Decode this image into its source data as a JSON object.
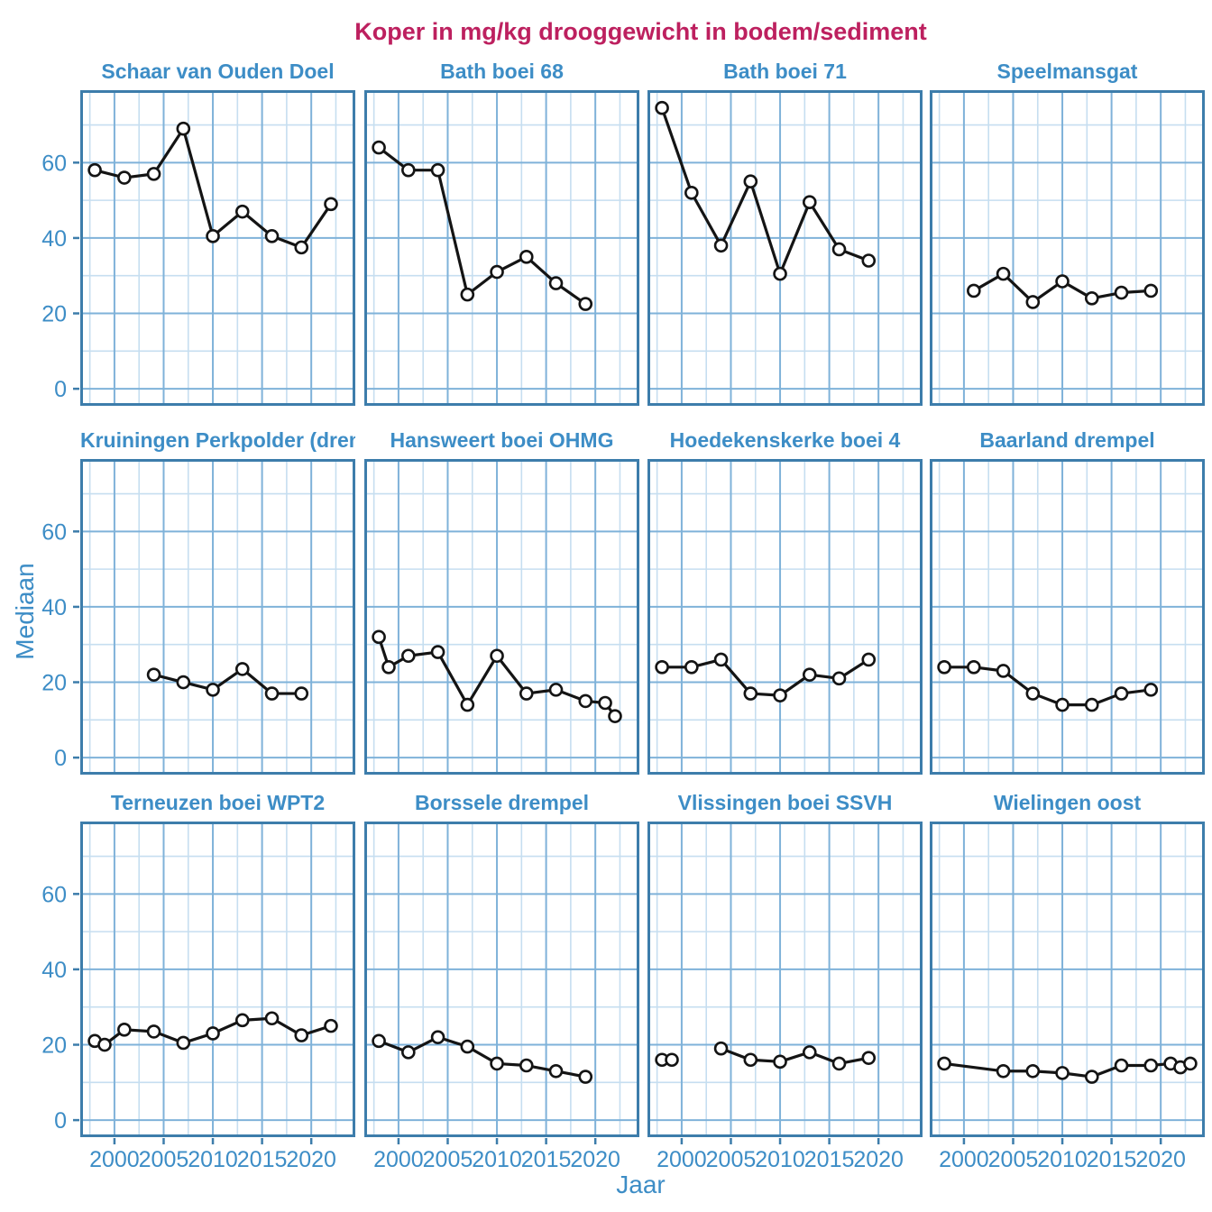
{
  "title": "Koper in mg/kg drooggewicht in bodem/sediment",
  "xlabel": "Jaar",
  "ylabel": "Mediaan",
  "colors": {
    "main_title": "#bd205f",
    "axis_text_blue": "#3d8dc6",
    "panel_border": "#3d7dab",
    "grid_major": "#7fb2d9",
    "grid_minor": "#c6def0",
    "data_line": "#141414",
    "marker_fill": "#ffffff"
  },
  "chart_data": {
    "type": "line",
    "title": "Koper in mg/kg drooggewicht in bodem/sediment",
    "xlabel": "Jaar",
    "ylabel": "Mediaan",
    "legend": "none",
    "grid": "major+minor",
    "x_ticks": [
      2000,
      2005,
      2010,
      2015,
      2020
    ],
    "x_minor_ticks": [
      1997.5,
      2002.5,
      2007.5,
      2012.5,
      2017.5,
      2022.5
    ],
    "y_ticks": [
      0,
      20,
      40,
      60
    ],
    "y_minor_ticks": [
      10,
      30,
      50,
      70
    ],
    "xlim": [
      1996.8,
      2024.2
    ],
    "ylim": [
      -3.8,
      78.5
    ],
    "marker": "open-circle",
    "panels": [
      {
        "title": "Schaar van Ouden Doel",
        "series": [
          {
            "x": [
              1998,
              2001,
              2004,
              2007,
              2010,
              2013,
              2016,
              2019,
              2022
            ],
            "y": [
              58,
              56,
              57,
              69,
              40.5,
              47,
              40.5,
              37.5,
              49
            ]
          }
        ]
      },
      {
        "title": "Bath boei 68",
        "series": [
          {
            "x": [
              1998,
              2001,
              2004,
              2007,
              2010,
              2013,
              2016,
              2019
            ],
            "y": [
              64,
              58,
              58,
              25,
              31,
              35,
              28,
              22.5
            ]
          }
        ]
      },
      {
        "title": "Bath boei 71",
        "series": [
          {
            "x": [
              1998,
              2001,
              2004,
              2007,
              2010,
              2013,
              2016,
              2019
            ],
            "y": [
              74.5,
              52,
              38,
              55,
              30.5,
              49.5,
              37,
              34
            ]
          }
        ]
      },
      {
        "title": "Speelmansgat",
        "series": [
          {
            "x": [
              2001,
              2004,
              2007,
              2010,
              2013,
              2016,
              2019
            ],
            "y": [
              26,
              30.5,
              23,
              28.5,
              24,
              25.5,
              26
            ]
          }
        ]
      },
      {
        "title": "Kruiningen Perkpolder (drempel)",
        "series": [
          {
            "x": [
              2004,
              2007,
              2010,
              2013,
              2016,
              2019
            ],
            "y": [
              22,
              20,
              18,
              23.5,
              17,
              17
            ]
          }
        ]
      },
      {
        "title": "Hansweert boei OHMG",
        "series": [
          {
            "x": [
              1998,
              1999,
              2001,
              2004,
              2007,
              2010,
              2013,
              2016,
              2019,
              2021,
              2022
            ],
            "y": [
              32,
              24,
              27,
              28,
              14,
              27,
              17,
              18,
              15,
              14.5,
              11
            ]
          }
        ]
      },
      {
        "title": "Hoedekenskerke boei 4",
        "series": [
          {
            "x": [
              1998,
              2001,
              2004,
              2007,
              2010,
              2013,
              2016,
              2019
            ],
            "y": [
              24,
              24,
              26,
              17,
              16.5,
              22,
              21,
              26
            ]
          }
        ]
      },
      {
        "title": "Baarland drempel",
        "series": [
          {
            "x": [
              1998,
              2001,
              2004,
              2007,
              2010,
              2013,
              2016,
              2019
            ],
            "y": [
              24,
              24,
              23,
              17,
              14,
              14,
              17,
              18
            ]
          }
        ]
      },
      {
        "title": "Terneuzen boei WPT2",
        "series": [
          {
            "x": [
              1998,
              1999,
              2001,
              2004,
              2007,
              2010,
              2013,
              2016,
              2019,
              2022
            ],
            "y": [
              21,
              20,
              24,
              23.5,
              20.5,
              23,
              26.5,
              27,
              22.5,
              25
            ]
          }
        ]
      },
      {
        "title": "Borssele drempel",
        "series": [
          {
            "x": [
              1998,
              2001,
              2004,
              2007,
              2010,
              2013,
              2016,
              2019
            ],
            "y": [
              21,
              18,
              22,
              19.5,
              15,
              14.5,
              13,
              11.5
            ]
          }
        ]
      },
      {
        "title": "Vlissingen boei SSVH",
        "series": [
          {
            "x": [
              1998,
              1999
            ],
            "y": [
              16,
              16
            ]
          },
          {
            "x": [
              2004,
              2007,
              2010,
              2013,
              2016,
              2019
            ],
            "y": [
              19,
              16,
              15.5,
              18,
              15,
              16.5
            ]
          }
        ]
      },
      {
        "title": "Wielingen oost",
        "series": [
          {
            "x": [
              1998,
              2004,
              2007,
              2010,
              2013,
              2016,
              2019,
              2021,
              2022,
              2023
            ],
            "y": [
              15,
              13,
              13,
              12.5,
              11.5,
              14.5,
              14.5,
              15,
              14,
              15
            ]
          }
        ]
      }
    ]
  }
}
